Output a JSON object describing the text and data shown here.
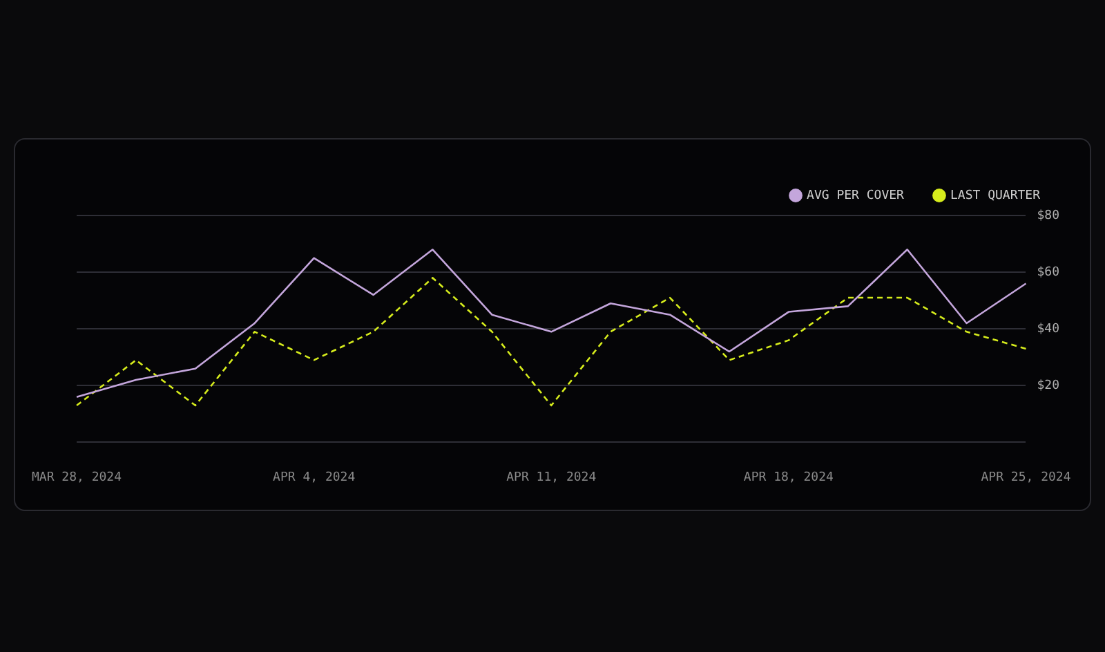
{
  "chart_data": {
    "type": "line",
    "categories": [
      "MAR 28, 2024",
      null,
      null,
      null,
      "APR 4, 2024",
      null,
      null,
      null,
      "APR 11, 2024",
      null,
      null,
      null,
      "APR 18, 2024",
      null,
      null,
      null,
      "APR 25, 2024"
    ],
    "series": [
      {
        "name": "AVG PER COVER",
        "color": "#c4a6dc",
        "line_style": "solid",
        "values": [
          16,
          22,
          26,
          42,
          65,
          52,
          68,
          45,
          39,
          49,
          45,
          32,
          46,
          48,
          68,
          42,
          56
        ]
      },
      {
        "name": "LAST QUARTER",
        "color": "#d6ec1c",
        "line_style": "dashed",
        "values": [
          13,
          29,
          13,
          39,
          29,
          39,
          58,
          39,
          13,
          39,
          51,
          29,
          36,
          51,
          51,
          39,
          33
        ]
      }
    ],
    "ylim": [
      0,
      80
    ],
    "yticks": [
      {
        "value": 0,
        "label": null
      },
      {
        "value": 20,
        "label": "$20"
      },
      {
        "value": 40,
        "label": "$40"
      },
      {
        "value": 60,
        "label": "$60"
      },
      {
        "value": 80,
        "label": "$80"
      }
    ],
    "grid": "y",
    "legend": "top right",
    "marker": "none"
  }
}
